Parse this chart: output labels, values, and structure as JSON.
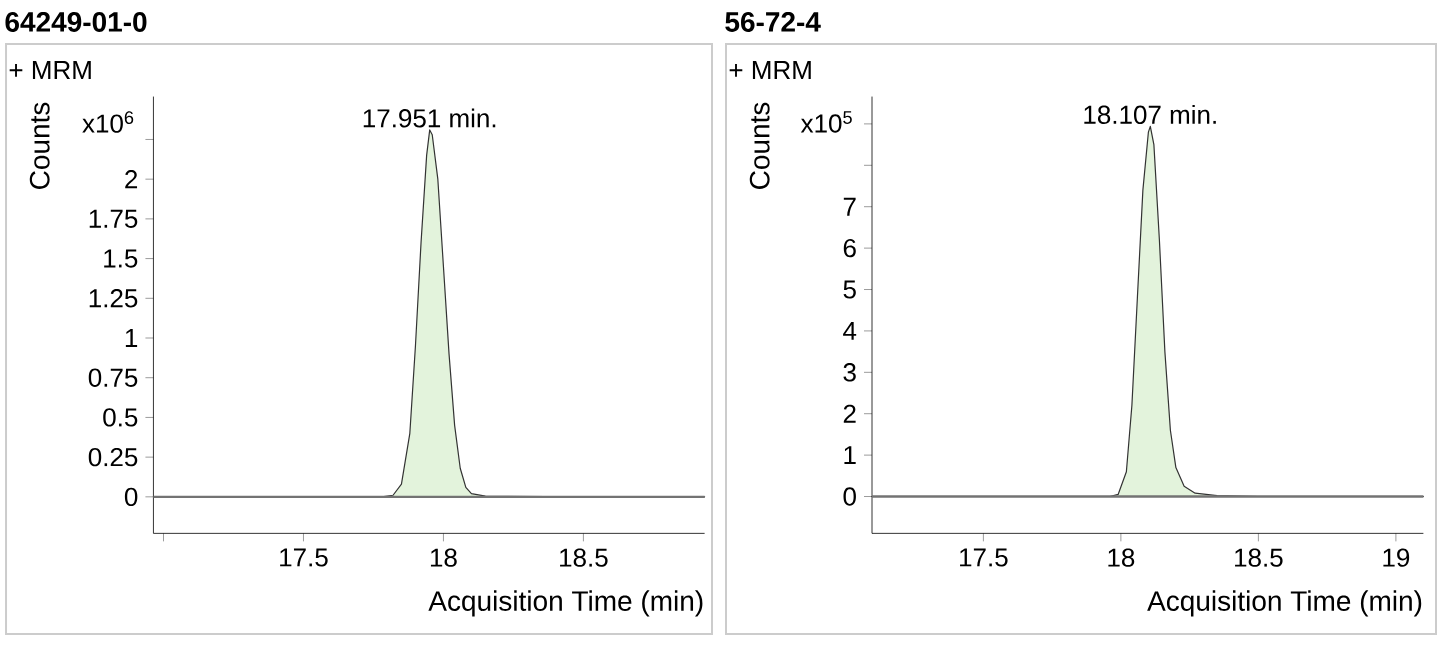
{
  "chart_data": [
    {
      "type": "area",
      "title": "64249-01-0",
      "xlabel": "Acquisition Time (min)",
      "ylabel": "Counts",
      "annotations": [
        "+ MRM",
        "x10$^{6}$",
        {
          "text": "17.951 min.",
          "x": 17.951,
          "y": 2.31
        }
      ],
      "x": [
        16.964,
        17.5,
        17.78,
        17.82,
        17.85,
        17.88,
        17.9,
        17.92,
        17.94,
        17.951,
        17.96,
        17.98,
        18.0,
        18.02,
        18.04,
        18.06,
        18.08,
        18.1,
        18.15,
        18.5,
        18.933
      ],
      "values": [
        0,
        0,
        0,
        0.01,
        0.08,
        0.4,
        0.95,
        1.6,
        2.15,
        2.31,
        2.28,
        2.0,
        1.45,
        0.9,
        0.45,
        0.18,
        0.06,
        0.02,
        0.005,
        0,
        0
      ],
      "color": "#e3f3dc",
      "xlim": [
        16.964,
        18.933
      ],
      "ylim": [
        -0.23,
        2.52
      ],
      "xticks": [
        {
          "value": 17,
          "label": null
        },
        17.5,
        18,
        18.5
      ],
      "yticks": [
        0,
        0.25,
        0.5,
        0.75,
        1,
        1.25,
        1.5,
        1.75,
        2,
        {
          "value": 2.25,
          "label": null
        }
      ]
    },
    {
      "type": "area",
      "title": "56-72-4",
      "xlabel": "Acquisition Time (min)",
      "ylabel": "Counts",
      "annotations": [
        "+ MRM",
        "x10$^{5}$",
        {
          "text": "18.107 min.",
          "x": 18.107,
          "y": 8.94
        }
      ],
      "x": [
        17.095,
        17.9,
        17.96,
        17.99,
        18.02,
        18.04,
        18.06,
        18.08,
        18.1,
        18.107,
        18.12,
        18.14,
        18.16,
        18.18,
        18.2,
        18.23,
        18.27,
        18.35,
        18.5,
        19.1
      ],
      "values": [
        0,
        0,
        0,
        0.05,
        0.6,
        2.2,
        4.8,
        7.4,
        8.8,
        8.94,
        8.5,
        6.2,
        3.5,
        1.6,
        0.7,
        0.25,
        0.08,
        0.02,
        0,
        0
      ],
      "color": "#e3f3dc",
      "xlim": [
        17.095,
        19.1
      ],
      "ylim": [
        -0.89,
        9.66
      ],
      "xticks": [
        17.5,
        18,
        18.5,
        19
      ],
      "yticks": [
        0,
        1,
        2,
        3,
        4,
        5,
        6,
        7,
        {
          "value": 8,
          "label": null
        },
        {
          "value": 9,
          "label": null
        }
      ]
    }
  ]
}
